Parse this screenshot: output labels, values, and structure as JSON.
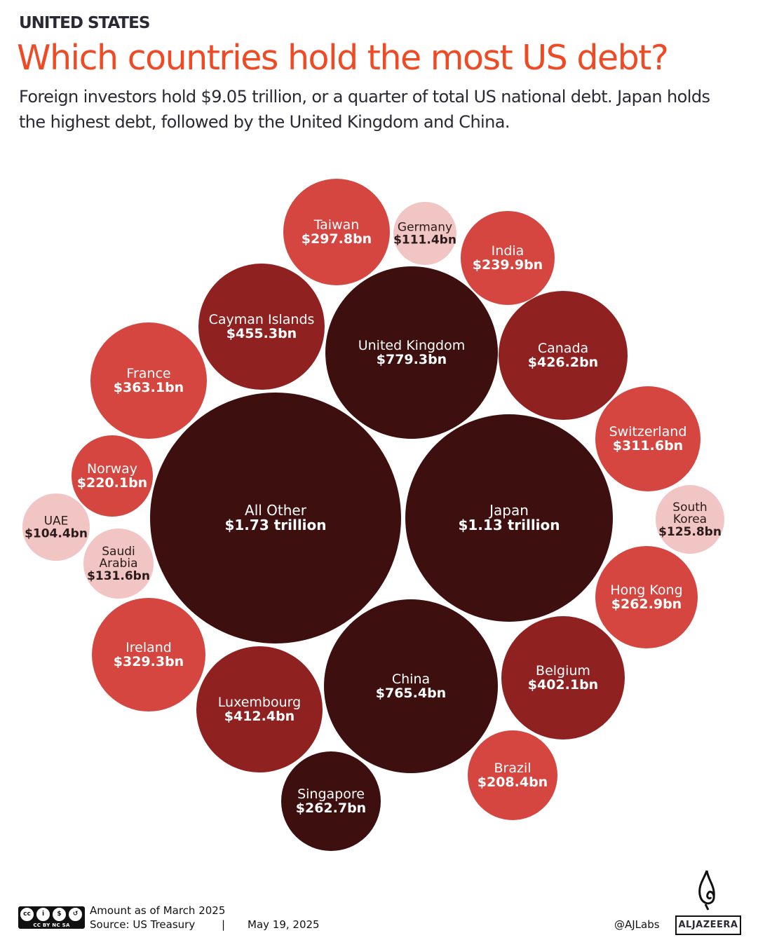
{
  "header": {
    "kicker": "UNITED STATES",
    "title": "Which countries hold the most US debt?",
    "subtitle": "Foreign investors hold $9.05 trillion, or a quarter of total US national debt. Japan holds  the highest debt, followed by the United Kingdom and China."
  },
  "chart_data": {
    "type": "bubble",
    "unit": "USD billions",
    "colors": {
      "darkest": "#3d0f0e",
      "dark": "#8f2120",
      "medium": "#d4463f",
      "light": "#f2c5c5"
    },
    "items": [
      {
        "name": "Taiwan",
        "label": "$297.8bn",
        "value": 297.8,
        "color": "#d4463f"
      },
      {
        "name": "Germany",
        "label": "$111.4bn",
        "value": 111.4,
        "color": "#f2c5c5"
      },
      {
        "name": "India",
        "label": "$239.9bn",
        "value": 239.9,
        "color": "#d4463f"
      },
      {
        "name": "Cayman Islands",
        "label": "$455.3bn",
        "value": 455.3,
        "color": "#8f2120"
      },
      {
        "name": "United Kingdom",
        "label": "$779.3bn",
        "value": 779.3,
        "color": "#3d0f0e"
      },
      {
        "name": "Canada",
        "label": "$426.2bn",
        "value": 426.2,
        "color": "#8f2120"
      },
      {
        "name": "France",
        "label": "$363.1bn",
        "value": 363.1,
        "color": "#d4463f"
      },
      {
        "name": "Switzerland",
        "label": "$311.6bn",
        "value": 311.6,
        "color": "#d4463f"
      },
      {
        "name": "Norway",
        "label": "$220.1bn",
        "value": 220.1,
        "color": "#d4463f"
      },
      {
        "name": "All Other",
        "label": "$1.73 trillion",
        "value": 1730,
        "color": "#3d0f0e"
      },
      {
        "name": "Japan",
        "label": "$1.13 trillion",
        "value": 1130,
        "color": "#3d0f0e"
      },
      {
        "name": "UAE",
        "label": "$104.4bn",
        "value": 104.4,
        "color": "#f2c5c5"
      },
      {
        "name": "South Korea",
        "label": "$125.8bn",
        "value": 125.8,
        "color": "#f2c5c5"
      },
      {
        "name": "Saudi Arabia",
        "label": "$131.6bn",
        "value": 131.6,
        "color": "#f2c5c5"
      },
      {
        "name": "Hong Kong",
        "label": "$262.9bn",
        "value": 262.9,
        "color": "#d4463f"
      },
      {
        "name": "Ireland",
        "label": "$329.3bn",
        "value": 329.3,
        "color": "#d4463f"
      },
      {
        "name": "Belgium",
        "label": "$402.1bn",
        "value": 402.1,
        "color": "#8f2120"
      },
      {
        "name": "China",
        "label": "$765.4bn",
        "value": 765.4,
        "color": "#3d0f0e"
      },
      {
        "name": "Luxembourg",
        "label": "$412.4bn",
        "value": 412.4,
        "color": "#8f2120"
      },
      {
        "name": "Brazil",
        "label": "$208.4bn",
        "value": 208.4,
        "color": "#d4463f"
      },
      {
        "name": "Singapore",
        "label": "$262.7bn",
        "value": 262.7,
        "color": "#3d0f0e"
      }
    ]
  },
  "footer": {
    "note": "Amount as of March 2025",
    "source": "Source:  US Treasury",
    "separator": "|",
    "date": "May 19, 2025",
    "handle": "@AJLabs",
    "logo_text": "ALJAZEERA",
    "license": "CC BY NC SA"
  }
}
